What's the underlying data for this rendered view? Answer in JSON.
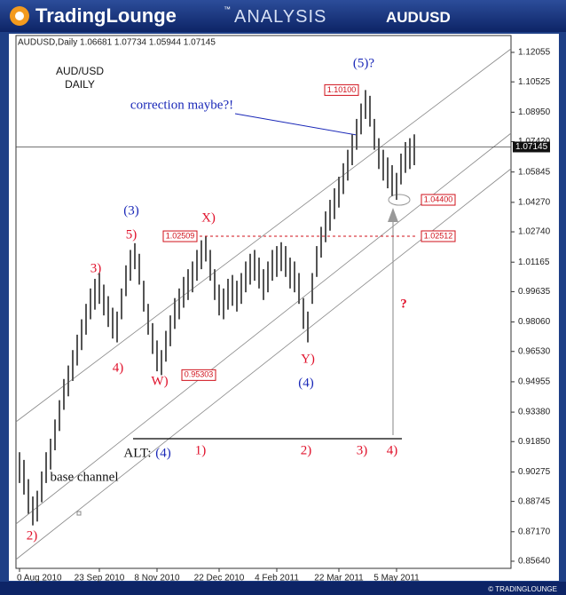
{
  "header": {
    "brand": "TradingLounge",
    "tm": "™",
    "subtitle": "ANALYSIS",
    "symbol": "AUDUSD"
  },
  "footer": "© TRADINGLOUNGE",
  "chart_data": {
    "type": "ohlc",
    "info": "AUDUSD,Daily  1.06681 1.07734 1.05944 1.07145",
    "title": "AUD/USD",
    "subtitle": "DAILY",
    "color": "#555555",
    "highs": [
      0.913,
      0.909,
      0.899,
      0.89,
      0.893,
      0.903,
      0.913,
      0.92,
      0.93,
      0.94,
      0.951,
      0.958,
      0.966,
      0.974,
      0.982,
      0.99,
      0.998,
      1.003,
      1.006,
      1.0,
      0.994,
      0.988,
      0.986,
      0.998,
      1.01,
      1.018,
      1.0215,
      1.016,
      1.002,
      0.99,
      0.98,
      0.971,
      0.966,
      0.976,
      0.984,
      0.993,
      0.998,
      1.004,
      1.008,
      1.012,
      1.018,
      1.023,
      1.0251,
      1.018,
      1.008,
      1.0,
      0.998,
      1.003,
      1.005,
      1.002,
      1.006,
      1.012,
      1.016,
      1.018,
      1.014,
      1.008,
      1.012,
      1.018,
      1.02,
      1.022,
      1.02,
      1.014,
      1.012,
      1.006,
      0.993,
      0.986,
      1.006,
      1.02,
      1.03,
      1.038,
      1.044,
      1.05,
      1.056,
      1.063,
      1.07,
      1.078,
      1.086,
      1.094,
      1.101,
      1.098,
      1.086,
      1.076,
      1.07,
      1.066,
      1.062,
      1.058,
      1.068,
      1.074,
      1.076,
      1.078
    ],
    "lows": [
      0.897,
      0.891,
      0.881,
      0.875,
      0.877,
      0.887,
      0.897,
      0.904,
      0.914,
      0.924,
      0.935,
      0.942,
      0.95,
      0.958,
      0.966,
      0.974,
      0.982,
      0.987,
      0.99,
      0.984,
      0.978,
      0.972,
      0.97,
      0.982,
      0.994,
      1.002,
      1.008,
      1.0,
      0.986,
      0.974,
      0.964,
      0.955,
      0.953,
      0.96,
      0.968,
      0.977,
      0.982,
      0.988,
      0.992,
      0.996,
      1.002,
      1.008,
      1.012,
      1.002,
      0.992,
      0.984,
      0.982,
      0.987,
      0.989,
      0.986,
      0.99,
      0.996,
      1.0,
      1.002,
      0.998,
      0.992,
      0.996,
      1.002,
      1.004,
      1.007,
      1.004,
      0.998,
      0.996,
      0.99,
      0.977,
      0.97,
      0.99,
      1.004,
      1.014,
      1.022,
      1.028,
      1.034,
      1.04,
      1.047,
      1.054,
      1.062,
      1.07,
      1.078,
      1.086,
      1.082,
      1.07,
      1.06,
      1.054,
      1.05,
      1.046,
      1.044,
      1.052,
      1.058,
      1.06,
      1.062
    ],
    "xlim": [
      -0.8,
      110.8
    ],
    "xticks": [
      {
        "value": 0,
        "label": "0 Aug 2010"
      },
      {
        "value": 18,
        "label": "23 Sep 2010"
      },
      {
        "value": 31,
        "label": "8 Nov 2010"
      },
      {
        "value": 45,
        "label": "22 Dec 2010"
      },
      {
        "value": 58,
        "label": "4 Feb 2011"
      },
      {
        "value": 72,
        "label": "22 Mar 2011"
      },
      {
        "value": 85,
        "label": "5 May 2011"
      }
    ],
    "ylim": [
      0.8527,
      1.1293
    ],
    "yticks": [
      1.12055,
      1.10525,
      {
        "value": 1.0895,
        "label": "1.08950"
      },
      {
        "value": 1.0742,
        "label": "1.07420"
      },
      1.05845,
      {
        "value": 1.0427,
        "label": "1.04270"
      },
      {
        "value": 1.0274,
        "label": "1.02740"
      },
      1.01165,
      0.99635,
      {
        "value": 0.9806,
        "label": "0.98060"
      },
      {
        "value": 0.9653,
        "label": "0.96530"
      },
      0.94955,
      {
        "value": 0.9338,
        "label": "0.93380"
      },
      {
        "value": 0.9185,
        "label": "0.91850"
      },
      0.90275,
      0.88745,
      {
        "value": 0.8717,
        "label": "0.87170"
      },
      {
        "value": 0.8564,
        "label": "0.85640"
      }
    ],
    "last_price": {
      "value": 1.07145,
      "label": "1.07145"
    },
    "price_levels": [
      {
        "value": 1.101,
        "label": "1.10100"
      },
      {
        "value": 1.02509,
        "label": "1.02509"
      },
      {
        "value": 0.95303,
        "label": "0.95303"
      },
      {
        "value": 1.044,
        "label": "1.04400"
      },
      {
        "value": 1.02512,
        "label": "1.02512"
      }
    ],
    "annotations": [
      "(5)?",
      "correction maybe?!",
      "(3)",
      "5)",
      "3)",
      "4)",
      "W)",
      "X)",
      "Y)",
      "(4)",
      "2)",
      "?",
      "ALT:",
      "(4)",
      "1)",
      "2)",
      "3)",
      "4)",
      "base channel"
    ]
  }
}
